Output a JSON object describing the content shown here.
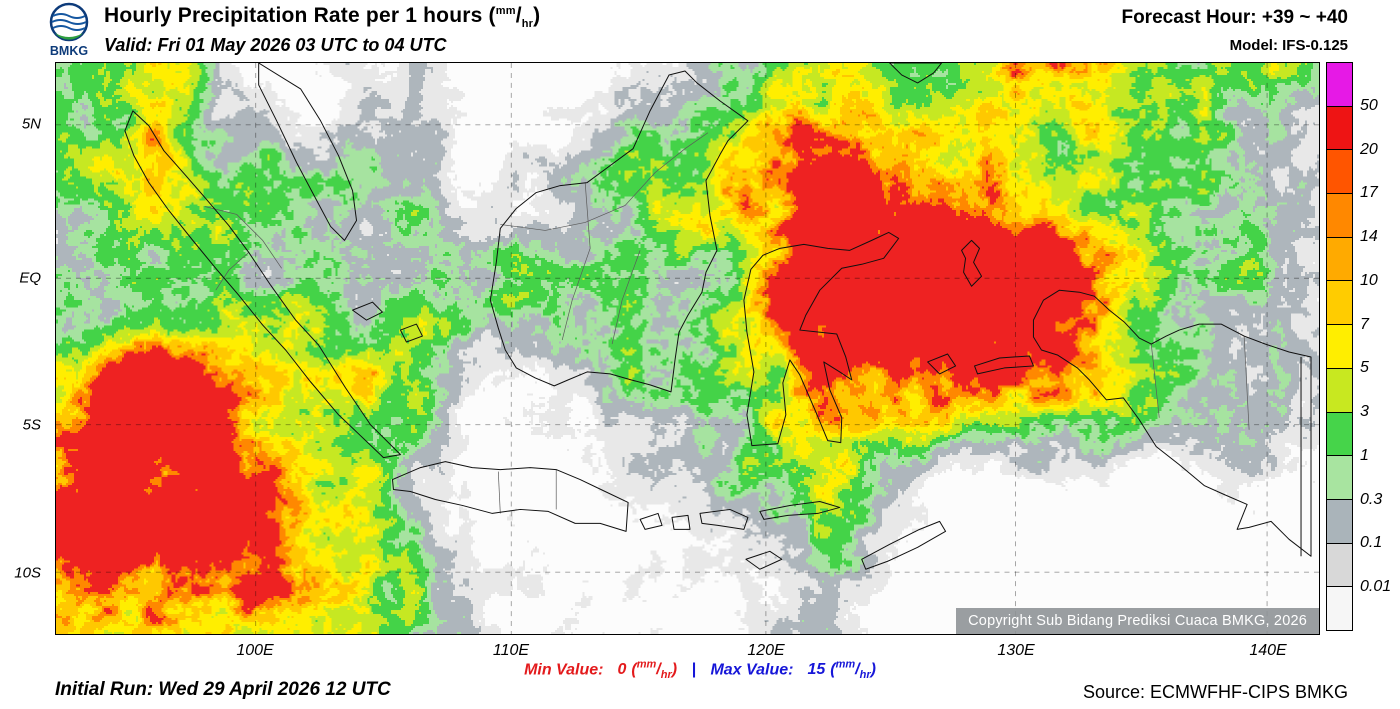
{
  "header": {
    "logo_text": "BMKG",
    "title": "Hourly Precipitation Rate per 1 hours",
    "valid": "Valid: Fri 01 May 2026 03 UTC to 04 UTC",
    "forecast_hour": "Forecast Hour: +39 ~ +40",
    "model": "Model: IFS-0.125"
  },
  "units": {
    "open": "(",
    "num": "mm",
    "slash": "/",
    "den": "hr",
    "close": ")"
  },
  "map": {
    "x_tick_labels": [
      "100E",
      "110E",
      "120E",
      "130E",
      "140E"
    ],
    "y_tick_labels": [
      "5N",
      "EQ",
      "5S",
      "10S"
    ],
    "copyright": "Copyright Sub Bidang Prediksi Cuaca BMKG, 2026"
  },
  "legend": {
    "labels": [
      "50",
      "20",
      "17",
      "14",
      "10",
      "7",
      "5",
      "3",
      "1",
      "0.3",
      "0.1",
      "0.01"
    ],
    "colors": [
      "#e619e6",
      "#ee1414",
      "#ff5500",
      "#ff8800",
      "#ffaa00",
      "#ffcc00",
      "#ffee00",
      "#c8e820",
      "#46d44a",
      "#a8e4a0",
      "#aab4ba",
      "#d8d8d8",
      "#f6f6f6"
    ]
  },
  "footer": {
    "initial_run": "Initial Run: Wed 29 April 2026 12 UTC",
    "min_label": "Min Value:",
    "min_value": "0",
    "separator": "|",
    "max_label": "Max Value:",
    "max_value": "15",
    "source": "Source: ECMWFHF-CIPS BMKG"
  }
}
